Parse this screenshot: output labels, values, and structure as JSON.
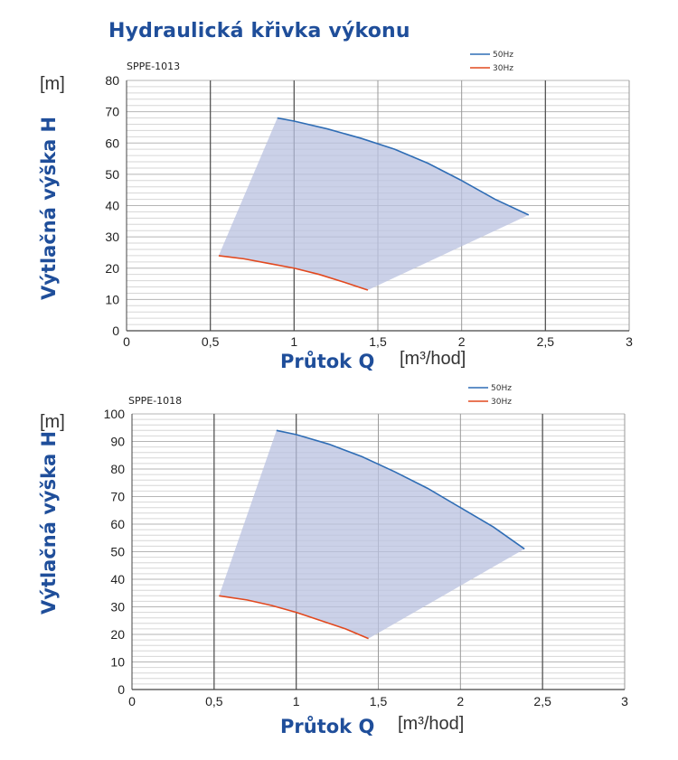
{
  "page": {
    "title": "Hydraulická křivka výkonu"
  },
  "charts": [
    {
      "model": "SPPE-1013",
      "y_unit": "[m]",
      "x_unit": "[m³/hod]",
      "ylabel": "Výtlačná výška H",
      "xlabel": "Průtok Q",
      "legend": [
        "50Hz",
        "30Hz"
      ]
    },
    {
      "model": "SPPE-1018",
      "y_unit": "[m]",
      "x_unit": "[m³/hod]",
      "ylabel": "Výtlačná výška H",
      "xlabel": "Průtok Q",
      "legend": [
        "50Hz",
        "30Hz"
      ]
    }
  ],
  "colors": {
    "series_50hz": "#2f6db5",
    "series_30hz": "#e2481e",
    "fill": "#b9c2e0",
    "title": "#1f4e9a"
  },
  "chart_data": [
    {
      "type": "line",
      "title": "SPPE-1013",
      "xlabel": "Průtok Q",
      "ylabel": "Výtlačná výška H",
      "xlim": [
        0,
        3
      ],
      "ylim": [
        0,
        80
      ],
      "x_ticks": [
        "0",
        "0,5",
        "1",
        "1,5",
        "2",
        "2,5",
        "3"
      ],
      "y_ticks": [
        "0",
        "10",
        "20",
        "30",
        "40",
        "50",
        "60",
        "70",
        "80"
      ],
      "grid": true,
      "legend_position": "top-right",
      "series": [
        {
          "name": "50Hz",
          "x": [
            0.9,
            1.0,
            1.2,
            1.4,
            1.6,
            1.8,
            2.0,
            2.2,
            2.4
          ],
          "y": [
            68,
            67,
            64.5,
            61.5,
            58,
            53.5,
            48,
            42,
            37
          ]
        },
        {
          "name": "30Hz",
          "x": [
            0.55,
            0.7,
            0.85,
            1.0,
            1.15,
            1.3,
            1.44
          ],
          "y": [
            24,
            23,
            21.5,
            20,
            18,
            15.5,
            13
          ]
        }
      ]
    },
    {
      "type": "line",
      "title": "SPPE-1018",
      "xlabel": "Průtok Q",
      "ylabel": "Výtlačná výška H",
      "xlim": [
        0,
        3
      ],
      "ylim": [
        0,
        100
      ],
      "x_ticks": [
        "0",
        "0,5",
        "1",
        "1,5",
        "2",
        "2,5",
        "3"
      ],
      "y_ticks": [
        "0",
        "10",
        "20",
        "30",
        "40",
        "50",
        "60",
        "70",
        "80",
        "90",
        "100"
      ],
      "grid": true,
      "legend_position": "top-right",
      "series": [
        {
          "name": "50Hz",
          "x": [
            0.88,
            1.0,
            1.2,
            1.4,
            1.6,
            1.8,
            2.0,
            2.2,
            2.39
          ],
          "y": [
            94,
            92.5,
            89,
            84.5,
            79,
            73,
            66,
            59,
            51
          ]
        },
        {
          "name": "30Hz",
          "x": [
            0.53,
            0.7,
            0.85,
            1.0,
            1.15,
            1.3,
            1.44
          ],
          "y": [
            34,
            32.5,
            30.5,
            28,
            25,
            22,
            18.5
          ]
        }
      ]
    }
  ]
}
